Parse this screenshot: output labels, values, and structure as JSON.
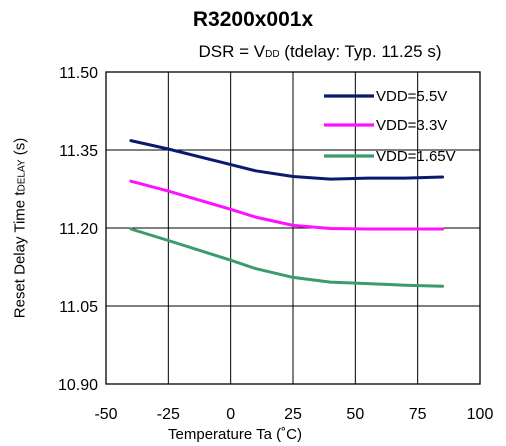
{
  "chart_data": {
    "type": "line",
    "title": "R3200x001x",
    "subtitle": {
      "prefix": "DSR = V",
      "sub": "DD",
      "suffix": " (tdelay: Typ. 11.25 s)"
    },
    "xlabel": "Temperature Ta (˚C)",
    "ylabel": {
      "prefix": "Reset Delay Time  t",
      "sub": "DELAY",
      "suffix": " (s)"
    },
    "xlim": [
      -50,
      100
    ],
    "ylim": [
      10.9,
      11.5
    ],
    "x_ticks": [
      "-50",
      "-25",
      "0",
      "25",
      "50",
      "75",
      "100"
    ],
    "y_ticks": [
      "10.90",
      "11.05",
      "11.20",
      "11.35",
      "11.50"
    ],
    "grid": true,
    "legend_position": "top-right",
    "series": [
      {
        "name": "VDD=5.5V",
        "color": "#0a1a6e",
        "x": [
          -40,
          -25,
          0,
          10,
          25,
          40,
          55,
          70,
          85
        ],
        "y": [
          11.368,
          11.352,
          11.322,
          11.31,
          11.299,
          11.294,
          11.296,
          11.296,
          11.298
        ]
      },
      {
        "name": "VDD=3.3V",
        "color": "#ff10ff",
        "x": [
          -40,
          -25,
          0,
          10,
          25,
          40,
          55,
          70,
          85
        ],
        "y": [
          11.29,
          11.271,
          11.236,
          11.221,
          11.205,
          11.199,
          11.198,
          11.198,
          11.198
        ]
      },
      {
        "name": "VDD=1.65V",
        "color": "#3c9b6c",
        "x": [
          -40,
          -25,
          0,
          10,
          25,
          40,
          55,
          70,
          85
        ],
        "y": [
          11.198,
          11.176,
          11.138,
          11.122,
          11.105,
          11.096,
          11.093,
          11.09,
          11.088
        ]
      }
    ]
  }
}
